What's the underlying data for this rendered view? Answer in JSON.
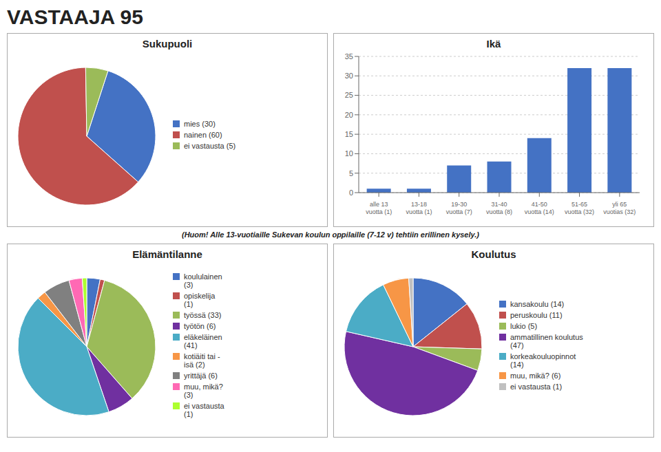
{
  "title": "VASTAAJA 95",
  "annotations": [
    "(Huom! Alle 13-vuotiaille Sukevan koulun oppilaille (7-12 v) tehtiin erillinen kysely.)"
  ],
  "chart_data": [
    {
      "type": "pie",
      "title": "Sukupuoli",
      "categories": [
        "mies (30)",
        "nainen (60)",
        "ei vastausta (5)"
      ],
      "values": [
        30,
        60,
        5
      ],
      "colors": [
        "#4472C4",
        "#C0504D",
        "#9BBB59"
      ],
      "legend": "right"
    },
    {
      "type": "bar",
      "title": "Ikä",
      "categories": [
        "alle 13\nvuotta (1)",
        "13-18\nvuotta (1)",
        "19-30\nvuotta (7)",
        "31-40\nvuotta (8)",
        "41-50\nvuotta (14)",
        "51-65\nvuotta (32)",
        "yli 65\nvuotias (32)"
      ],
      "values": [
        1,
        1,
        7,
        8,
        14,
        32,
        32
      ],
      "color": "#4472C4",
      "ylim": [
        0,
        35
      ],
      "yticks": [
        0,
        5,
        10,
        15,
        20,
        25,
        30,
        35
      ],
      "grid": true
    },
    {
      "type": "pie",
      "title": "Elämäntilanne",
      "categories": [
        "koululainen\n(3)",
        "opiskelija\n(1)",
        "työssä (33)",
        "työtön (6)",
        "eläkeläinen\n(41)",
        "kotiäiti tai -\nisä (2)",
        "yrittäjä (6)",
        "muu, mikä?\n(3)",
        "ei vastausta\n(1)"
      ],
      "values": [
        3,
        1,
        33,
        6,
        41,
        2,
        6,
        3,
        1
      ],
      "colors": [
        "#4472C4",
        "#C0504D",
        "#9BBB59",
        "#7030A0",
        "#4BACC6",
        "#F79646",
        "#808080",
        "#FF69B4",
        "#ADFF2F"
      ],
      "legend": "right"
    },
    {
      "type": "pie",
      "title": "Koulutus",
      "categories": [
        "kansakoulu (14)",
        "peruskoulu (11)",
        "lukio (5)",
        "ammatillinen koulutus\n(47)",
        "korkeakouluopinnot\n(14)",
        "muu, mikä? (6)",
        "ei vastausta (1)"
      ],
      "values": [
        14,
        11,
        5,
        47,
        14,
        6,
        1
      ],
      "colors": [
        "#4472C4",
        "#C0504D",
        "#9BBB59",
        "#7030A0",
        "#4BACC6",
        "#F79646",
        "#C0C0C0"
      ],
      "legend": "right"
    }
  ]
}
